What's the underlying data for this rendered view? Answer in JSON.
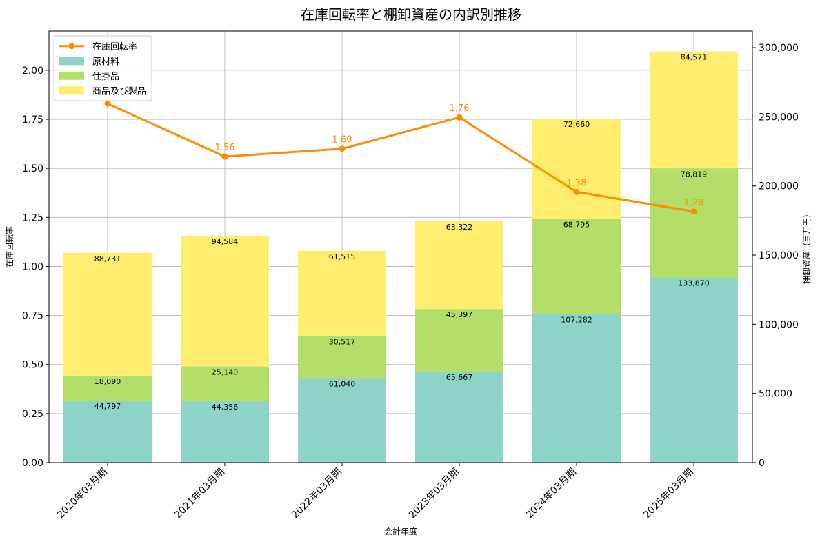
{
  "chart_data": {
    "type": "bar",
    "title": "在庫回転率と棚卸資産の内訳別推移",
    "xlabel": "会計年度",
    "ylabel_left": "在庫回転率",
    "ylabel_right": "棚卸資産（百万円）",
    "categories": [
      "2020年03月期",
      "2021年03月期",
      "2022年03月期",
      "2023年03月期",
      "2024年03月期",
      "2025年03月期"
    ],
    "left_ylim": [
      0,
      2.2
    ],
    "left_ticks": [
      "0.00",
      "0.25",
      "0.50",
      "0.75",
      "1.00",
      "1.25",
      "1.50",
      "1.75",
      "2.00"
    ],
    "right_ylim": [
      0,
      312000
    ],
    "right_ticks": [
      "0",
      "50,000",
      "100,000",
      "150,000",
      "200,000",
      "250,000",
      "300,000"
    ],
    "grid": true,
    "legend_position": "top-left",
    "stacked_series": [
      {
        "name": "原材料",
        "color": "#8dd3c7",
        "values": [
          44797,
          44356,
          61040,
          65667,
          107282,
          133870
        ],
        "labels": [
          "44,797",
          "44,356",
          "61,040",
          "65,667",
          "107,282",
          "133,870"
        ]
      },
      {
        "name": "仕掛品",
        "color": "#b3de69",
        "values": [
          18090,
          25140,
          30517,
          45397,
          68795,
          78819
        ],
        "labels": [
          "18,090",
          "25,140",
          "30,517",
          "45,397",
          "68,795",
          "78,819"
        ]
      },
      {
        "name": "商品及び製品",
        "color": "#ffed6f",
        "values": [
          88731,
          94584,
          61515,
          63322,
          72660,
          84571
        ],
        "labels": [
          "88,731",
          "94,584",
          "61,515",
          "63,322",
          "72,660",
          "84,571"
        ]
      }
    ],
    "line_series": {
      "name": "在庫回転率",
      "color": "#ff8c00",
      "values": [
        1.83,
        1.56,
        1.6,
        1.76,
        1.38,
        1.28
      ],
      "labels": [
        "",
        "1.56",
        "1.60",
        "1.76",
        "1.38",
        "1.28"
      ]
    }
  }
}
